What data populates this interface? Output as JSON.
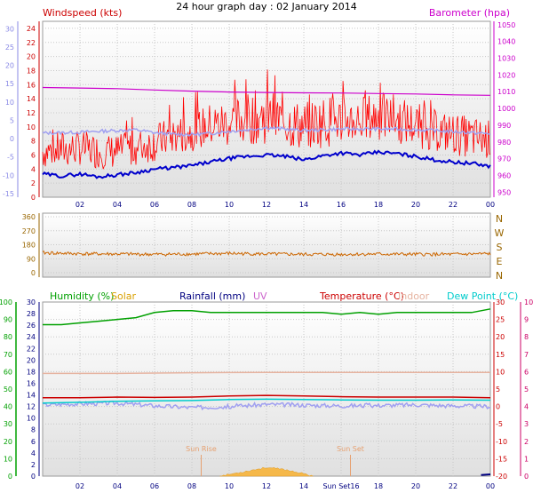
{
  "title": "24 hour graph day : 02 January 2014",
  "colors": {
    "wind_speed": "#ff0000",
    "wind_gust_bg": "#ff0000",
    "wind_avg": "#0000cc",
    "barometer": "#cc00cc",
    "left_axis_pale": "#8a8ae6",
    "direction": "#cc6600",
    "direction_axis": "#996600",
    "humidity": "#00a000",
    "solar": "#d9a000",
    "rainfall": "#000080",
    "uv": "#cc66cc",
    "temperature": "#cc0000",
    "indoor": "#e6b3a0",
    "dew_point": "#00cccc",
    "pale_line": "#a0a0f0",
    "sun_marker": "#e6a070",
    "temp_axis": "#cc0066",
    "panel_bg_top": "#ffffff",
    "panel_bg_bottom": "#e0e0e0"
  },
  "chart_data": [
    {
      "type": "line",
      "panel": "wind-barometer",
      "title_left": "Windspeed (kts)",
      "title_right": "Barometer (hpa)",
      "x_ticks": [
        "02",
        "04",
        "06",
        "08",
        "10",
        "12",
        "14",
        "16",
        "18",
        "20",
        "22",
        "00"
      ],
      "x_range_hours": [
        0,
        24
      ],
      "y_left_ticks": [
        "24",
        "22",
        "20",
        "18",
        "16",
        "14",
        "12",
        "10",
        "8",
        "6",
        "4",
        "2",
        "0"
      ],
      "y_left_range": [
        0,
        25
      ],
      "y_left_outer_ticks": [
        "30",
        "25",
        "20",
        "15",
        "10",
        "5",
        "0",
        "-5",
        "-10",
        "-15"
      ],
      "y_left_outer_range": [
        -16,
        32
      ],
      "y_right_ticks": [
        "1050",
        "1040",
        "1030",
        "1020",
        "1010",
        "1000",
        "990",
        "980",
        "970",
        "960",
        "950"
      ],
      "y_right_range": [
        947,
        1052
      ],
      "series": [
        {
          "key": "wind_gust",
          "kind": "gust",
          "x": [
            0,
            1,
            2,
            3,
            4,
            5,
            6,
            7,
            8,
            9,
            10,
            11,
            12,
            13,
            14,
            15,
            16,
            17,
            18,
            19,
            20,
            21,
            22,
            23,
            24
          ],
          "low": [
            4.0,
            4.0,
            4.5,
            4.0,
            4.0,
            4.5,
            5.0,
            6.0,
            6.5,
            7.0,
            7.0,
            7.5,
            7.5,
            7.0,
            6.5,
            7.0,
            7.5,
            7.5,
            8.0,
            7.5,
            7.0,
            6.5,
            6.0,
            5.5,
            5.5
          ],
          "high": [
            9.0,
            9.5,
            9.5,
            9.0,
            9.0,
            9.5,
            10.5,
            11.5,
            12.0,
            13.5,
            14.0,
            15.0,
            15.5,
            14.5,
            13.5,
            14.5,
            14.5,
            14.5,
            15.0,
            14.5,
            13.5,
            12.5,
            12.0,
            11.5,
            11.0
          ]
        },
        {
          "key": "wind_avg",
          "kind": "line",
          "x": [
            0,
            1,
            2,
            3,
            4,
            5,
            6,
            7,
            8,
            9,
            10,
            11,
            12,
            13,
            14,
            15,
            16,
            17,
            18,
            19,
            20,
            21,
            22,
            23,
            24
          ],
          "values": [
            3.3,
            3.0,
            3.3,
            2.9,
            3.2,
            3.5,
            4.0,
            4.2,
            4.5,
            5.0,
            5.5,
            5.8,
            6.0,
            5.8,
            5.3,
            5.9,
            6.3,
            6.0,
            6.4,
            6.2,
            5.8,
            5.3,
            5.0,
            4.8,
            4.4
          ]
        },
        {
          "key": "pale_line",
          "kind": "line",
          "axis": "outer",
          "x": [
            0,
            1,
            2,
            3,
            4,
            5,
            6,
            7,
            8,
            9,
            10,
            11,
            12,
            13,
            14,
            15,
            16,
            17,
            18,
            19,
            20,
            21,
            22,
            23,
            24
          ],
          "values": [
            1.5,
            1.6,
            1.7,
            2.0,
            2.2,
            2.4,
            1.6,
            1.2,
            1.1,
            1.4,
            2.0,
            2.4,
            3.0,
            2.6,
            2.2,
            2.4,
            2.6,
            2.6,
            2.6,
            2.6,
            2.4,
            2.2,
            1.9,
            1.6,
            1.3
          ]
        },
        {
          "key": "barometer",
          "kind": "line",
          "axis": "right",
          "x": [
            0,
            2,
            4,
            6,
            8,
            10,
            12,
            14,
            16,
            18,
            20,
            22,
            24
          ],
          "values": [
            1012.5,
            1012.2,
            1011.8,
            1011.0,
            1010.3,
            1009.8,
            1009.5,
            1009.3,
            1009.2,
            1008.9,
            1008.6,
            1008.1,
            1007.8
          ]
        }
      ]
    },
    {
      "type": "line",
      "panel": "direction",
      "x_range_hours": [
        0,
        24
      ],
      "y_ticks": [
        "360",
        "270",
        "180",
        "90",
        "0"
      ],
      "y_range": [
        0,
        360
      ],
      "y_right_labels": [
        "N",
        "W",
        "S",
        "E",
        "N"
      ],
      "series": [
        {
          "key": "direction",
          "x": [
            0,
            2,
            4,
            6,
            8,
            10,
            12,
            14,
            16,
            18,
            20,
            22,
            24
          ],
          "values": [
            128,
            122,
            120,
            118,
            120,
            124,
            120,
            118,
            118,
            120,
            118,
            118,
            122
          ]
        }
      ]
    },
    {
      "type": "line",
      "panel": "humidity-temperature",
      "legend": [
        {
          "label": "Humidity (%)",
          "key": "humidity"
        },
        {
          "label": "Solar",
          "key": "solar"
        },
        {
          "label": "Rainfall (mm)",
          "key": "rainfall"
        },
        {
          "label": "UV",
          "key": "uv"
        },
        {
          "label": "Temperature (°C)",
          "key": "temperature"
        },
        {
          "label": "Indoor",
          "key": "indoor"
        },
        {
          "label": "Dew Point (°C)",
          "key": "dew_point"
        }
      ],
      "x_ticks": [
        "02",
        "04",
        "06",
        "08",
        "10",
        "12",
        "14",
        "Sun Set16",
        "18",
        "20",
        "22",
        "00"
      ],
      "x_range_hours": [
        0,
        24
      ],
      "y_outer_left_ticks": [
        "100",
        "90",
        "80",
        "70",
        "60",
        "50",
        "40",
        "30",
        "20",
        "10",
        "0"
      ],
      "y_outer_left_range": [
        0,
        100
      ],
      "y_inner_left_ticks": [
        "30",
        "28",
        "26",
        "24",
        "22",
        "20",
        "18",
        "16",
        "14",
        "12",
        "10",
        "8",
        "6",
        "4",
        "2",
        "0"
      ],
      "y_inner_left_range": [
        0,
        30
      ],
      "y_inner_right_ticks": [
        "30",
        "25",
        "20",
        "15",
        "10",
        "5",
        "0",
        "-5",
        "-10",
        "-15",
        "-20"
      ],
      "y_inner_right_range": [
        -20,
        30
      ],
      "y_outer_right_ticks": [
        "10",
        "9",
        "8",
        "7",
        "6",
        "5",
        "4",
        "3",
        "2",
        "1",
        "0"
      ],
      "y_outer_right_range": [
        0,
        10
      ],
      "sun_markers": [
        {
          "label": "Sun Rise",
          "hour": 8.5
        },
        {
          "label": "Sun Set",
          "hour": 16.5
        }
      ],
      "series": [
        {
          "key": "humidity",
          "axis": "outer_left",
          "x": [
            0,
            1,
            2,
            3,
            4,
            5,
            6,
            7,
            8,
            9,
            10,
            11,
            12,
            13,
            14,
            15,
            16,
            17,
            18,
            19,
            20,
            21,
            22,
            23,
            24
          ],
          "values": [
            87,
            87,
            88,
            89,
            90,
            91,
            94,
            95,
            95,
            94,
            94,
            94,
            94,
            94,
            94,
            94,
            93,
            94,
            93,
            94,
            94,
            94,
            94,
            94,
            96
          ]
        },
        {
          "key": "indoor",
          "axis": "inner_right",
          "x": [
            0,
            4,
            8,
            12,
            16,
            20,
            24
          ],
          "values": [
            9.5,
            9.5,
            9.7,
            9.8,
            9.8,
            9.8,
            9.8
          ]
        },
        {
          "key": "temperature",
          "axis": "inner_right",
          "x": [
            0,
            2,
            4,
            6,
            8,
            10,
            12,
            14,
            16,
            18,
            20,
            22,
            24
          ],
          "values": [
            2.5,
            2.5,
            2.7,
            2.6,
            2.7,
            3.0,
            3.2,
            3.0,
            2.8,
            2.7,
            2.7,
            2.7,
            2.5
          ]
        },
        {
          "key": "dew_point",
          "axis": "inner_right",
          "x": [
            0,
            2,
            4,
            6,
            8,
            10,
            12,
            14,
            16,
            18,
            20,
            22,
            24
          ],
          "values": [
            1.0,
            1.2,
            1.5,
            1.6,
            1.7,
            2.0,
            2.1,
            2.0,
            1.9,
            1.8,
            1.8,
            1.9,
            1.8
          ]
        },
        {
          "key": "pale_line",
          "axis": "inner_right",
          "x": [
            0,
            2,
            4,
            6,
            8,
            10,
            12,
            14,
            16,
            18,
            20,
            22,
            24
          ],
          "values": [
            0.5,
            0.8,
            1.0,
            0.2,
            -0.3,
            0.0,
            0.6,
            0.4,
            0.2,
            0.3,
            0.5,
            0.2,
            0.0
          ]
        },
        {
          "key": "solar",
          "axis": "inner_left",
          "kind": "area",
          "x": [
            9.5,
            10,
            10.5,
            11,
            11.5,
            12,
            12.5,
            13,
            13.5,
            14,
            14.5
          ],
          "values": [
            0.0,
            0.3,
            0.6,
            0.9,
            1.2,
            1.5,
            1.3,
            1.1,
            0.8,
            0.4,
            0.0
          ]
        },
        {
          "key": "rainfall",
          "axis": "inner_left",
          "x": [
            23.5,
            24
          ],
          "values": [
            0.2,
            0.3
          ]
        }
      ]
    }
  ]
}
